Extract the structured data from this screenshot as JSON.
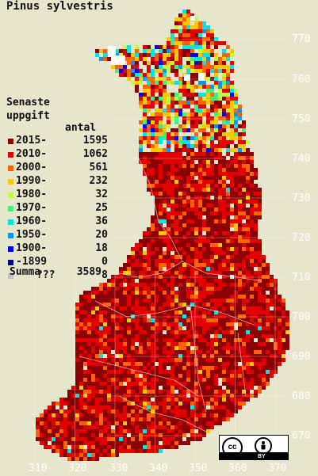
{
  "title": "Pinus sylvestris",
  "legend": {
    "heading1": "Senaste",
    "heading2": "uppgift",
    "count_header": "antal",
    "items": [
      {
        "label": "2015-",
        "count": "1595",
        "color": "#8b0000"
      },
      {
        "label": "2010-",
        "count": "1062",
        "color": "#e20000"
      },
      {
        "label": "2000-",
        "count": "561",
        "color": "#ff6400"
      },
      {
        "label": "1990-",
        "count": "232",
        "color": "#ffc800"
      },
      {
        "label": "1980-",
        "count": "32",
        "color": "#bfff3f"
      },
      {
        "label": "1970-",
        "count": "25",
        "color": "#40f080"
      },
      {
        "label": "1960-",
        "count": "36",
        "color": "#00e6e6"
      },
      {
        "label": "1950-",
        "count": "20",
        "color": "#0096ff"
      },
      {
        "label": "1900-",
        "count": "18",
        "color": "#0000ff"
      },
      {
        "label": "-1899",
        "count": "0",
        "color": "#000080"
      },
      {
        "label": "???",
        "count": "8",
        "color": "#c0c0c0"
      }
    ],
    "summa_label": "Summa",
    "summa_count": "3589"
  },
  "y_ticks": [
    "770",
    "760",
    "750",
    "740",
    "730",
    "720",
    "710",
    "700",
    "690",
    "680",
    "670"
  ],
  "x_ticks": [
    "310",
    "320",
    "330",
    "340",
    "350",
    "360",
    "370"
  ],
  "license": {
    "cc": "cc",
    "by": "BY"
  }
}
